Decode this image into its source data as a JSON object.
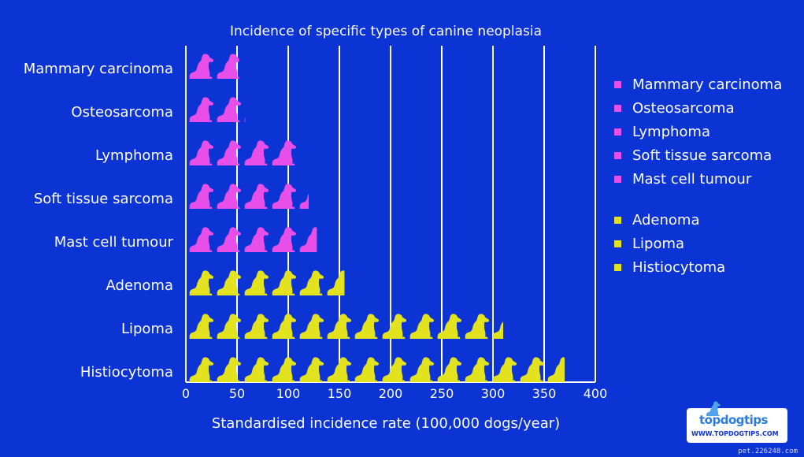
{
  "chart_data": {
    "type": "bar",
    "title": "Incidence of specific types of canine neoplasia",
    "xlabel": "Standardised incidence rate (100,000 dogs/year)",
    "xlim": [
      0,
      400
    ],
    "xticks": [
      "0",
      "50",
      "100",
      "150",
      "200",
      "250",
      "300",
      "350",
      "400"
    ],
    "grid": true,
    "categories": [
      "Mammary carcinoma",
      "Osteosarcoma",
      "Lymphoma",
      "Soft tissue sarcoma",
      "Mast cell tumour",
      "Adenoma",
      "Lipoma",
      "Histiocytoma"
    ],
    "values": [
      52,
      58,
      110,
      120,
      128,
      155,
      310,
      370
    ],
    "groups": [
      "pink",
      "pink",
      "pink",
      "pink",
      "pink",
      "yellow",
      "yellow",
      "yellow"
    ],
    "colors": {
      "pink": "#e84fe8",
      "yellow": "#e2e21f"
    },
    "legend": {
      "placement": "right",
      "entries": [
        {
          "name": "Mammary carcinoma",
          "group": "pink"
        },
        {
          "name": "Osteosarcoma",
          "group": "pink"
        },
        {
          "name": "Lymphoma",
          "group": "pink"
        },
        {
          "name": "Soft tissue sarcoma",
          "group": "pink"
        },
        {
          "name": "Mast cell tumour",
          "group": "pink"
        },
        {
          "name": "Adenoma",
          "group": "yellow"
        },
        {
          "name": "Lipoma",
          "group": "yellow"
        },
        {
          "name": "Histiocytoma",
          "group": "yellow"
        }
      ]
    }
  },
  "logo": {
    "name": "topdogtips",
    "url": "WWW.TOPDOGTIPS.COM"
  },
  "watermark": "pet.226248.com",
  "colors": {
    "background": "#0c33d4",
    "grid": "#ffffff",
    "text": "#ffffff"
  }
}
